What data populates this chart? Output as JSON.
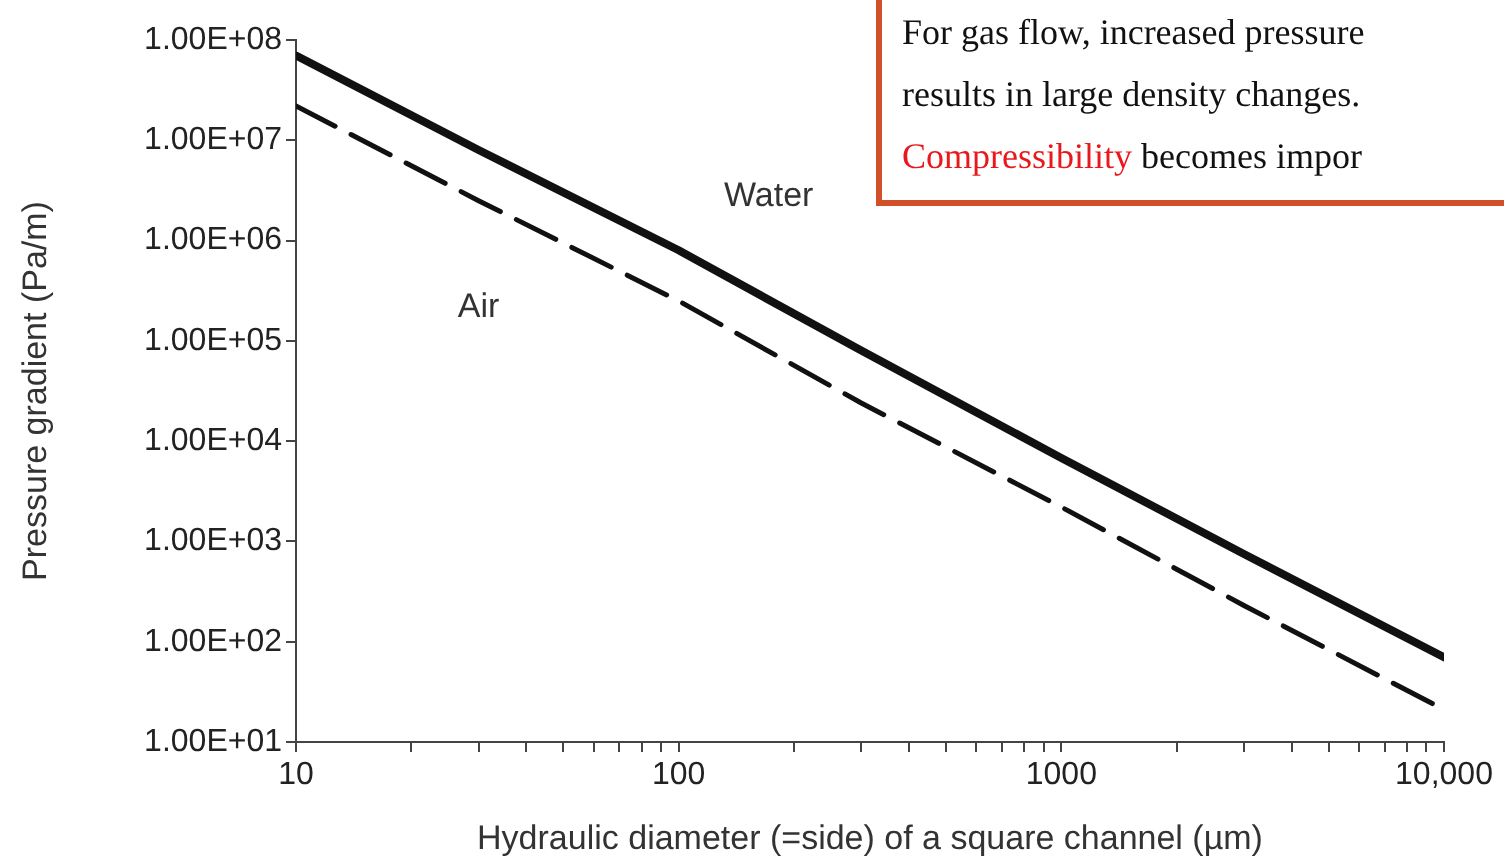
{
  "chart_data": {
    "type": "line",
    "xlabel": "Hydraulic diameter (=side) of a square channel (µm)",
    "ylabel": "Pressure gradient (Pa/m)",
    "x": [
      10,
      30,
      100,
      300,
      1000,
      3000,
      10000
    ],
    "series": [
      {
        "name": "Water",
        "color": "#111111",
        "line_style": "solid",
        "values": [
          70000000,
          8000000,
          800000,
          80000,
          6800,
          750,
          70
        ]
      },
      {
        "name": "Air",
        "color": "#111111",
        "line_style": "dashed",
        "values": [
          22000000,
          2500000,
          250000,
          24000,
          2200,
          230,
          21
        ]
      }
    ],
    "log": "xy",
    "xlim": [
      10,
      10000
    ],
    "ylim": [
      10,
      100000000
    ],
    "xticks": [
      10,
      {
        "value": 20,
        "label": null
      },
      {
        "value": 30,
        "label": null
      },
      {
        "value": 40,
        "label": null
      },
      {
        "value": 50,
        "label": null
      },
      {
        "value": 60,
        "label": null
      },
      {
        "value": 70,
        "label": null
      },
      {
        "value": 80,
        "label": null
      },
      {
        "value": 90,
        "label": null
      },
      100,
      {
        "value": 200,
        "label": null
      },
      {
        "value": 300,
        "label": null
      },
      {
        "value": 400,
        "label": null
      },
      {
        "value": 500,
        "label": null
      },
      {
        "value": 600,
        "label": null
      },
      {
        "value": 700,
        "label": null
      },
      {
        "value": 800,
        "label": null
      },
      {
        "value": 900,
        "label": null
      },
      1000,
      {
        "value": 2000,
        "label": null
      },
      {
        "value": 3000,
        "label": null
      },
      {
        "value": 4000,
        "label": null
      },
      {
        "value": 5000,
        "label": null
      },
      {
        "value": 6000,
        "label": null
      },
      {
        "value": 7000,
        "label": null
      },
      {
        "value": 8000,
        "label": null
      },
      {
        "value": 9000,
        "label": null
      },
      {
        "value": 10000,
        "label": "10,000"
      }
    ],
    "yticks": [
      {
        "value": 10,
        "label": "1.00E+01"
      },
      {
        "value": 100,
        "label": "1.00E+02"
      },
      {
        "value": 1000,
        "label": "1.00E+03"
      },
      {
        "value": 10000,
        "label": "1.00E+04"
      },
      {
        "value": 100000,
        "label": "1.00E+05"
      },
      {
        "value": 1000000,
        "label": "1.00E+06"
      },
      {
        "value": 10000000,
        "label": "1.00E+07"
      },
      {
        "value": 100000000,
        "label": "1.00E+08"
      }
    ],
    "grid": false,
    "legend": false,
    "marker": "none",
    "annotations": [
      "For gas flow, increased pressure",
      "results in large density changes.",
      "Compressibility becomes impor"
    ]
  }
}
